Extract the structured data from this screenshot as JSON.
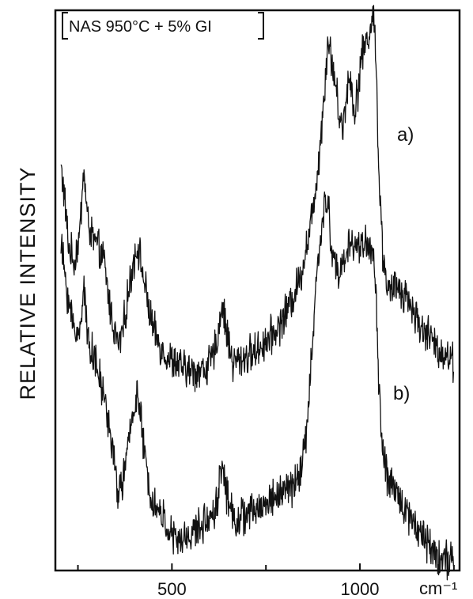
{
  "chart_data": {
    "type": "line",
    "legend_text": "NAS 950°C + 5% GI",
    "ylabel": "RELATIVE INTENSITY",
    "xunit": "cm⁻¹",
    "xlim": [
      190,
      1265
    ],
    "ylim": [
      0,
      100
    ],
    "xticks": [
      {
        "value": 500,
        "label": "500"
      },
      {
        "value": 1000,
        "label": "1000"
      }
    ],
    "minor_ticks": [
      250,
      750,
      1250
    ],
    "grid": false,
    "legend_position": "top-left",
    "series": [
      {
        "name": "a)",
        "color": "#111111",
        "points": [
          [
            205,
            72
          ],
          [
            215,
            66
          ],
          [
            225,
            58
          ],
          [
            240,
            55
          ],
          [
            255,
            60
          ],
          [
            265,
            72
          ],
          [
            275,
            63
          ],
          [
            285,
            60
          ],
          [
            300,
            58
          ],
          [
            320,
            55
          ],
          [
            335,
            47
          ],
          [
            350,
            42
          ],
          [
            358,
            40
          ],
          [
            370,
            43
          ],
          [
            385,
            50
          ],
          [
            400,
            56
          ],
          [
            410,
            58
          ],
          [
            420,
            54
          ],
          [
            435,
            48
          ],
          [
            450,
            43
          ],
          [
            470,
            40
          ],
          [
            490,
            38
          ],
          [
            510,
            37
          ],
          [
            530,
            36
          ],
          [
            560,
            35.5
          ],
          [
            590,
            36
          ],
          [
            610,
            38
          ],
          [
            625,
            43
          ],
          [
            632,
            48
          ],
          [
            640,
            45
          ],
          [
            650,
            41
          ],
          [
            662,
            37
          ],
          [
            690,
            38
          ],
          [
            720,
            39
          ],
          [
            750,
            41
          ],
          [
            780,
            43
          ],
          [
            810,
            47
          ],
          [
            840,
            52
          ],
          [
            870,
            62
          ],
          [
            890,
            73
          ],
          [
            905,
            85
          ],
          [
            915,
            95
          ],
          [
            925,
            91
          ],
          [
            935,
            87
          ],
          [
            945,
            81
          ],
          [
            955,
            79
          ],
          [
            965,
            86
          ],
          [
            975,
            88
          ],
          [
            985,
            82
          ],
          [
            995,
            86
          ],
          [
            1005,
            92
          ],
          [
            1015,
            94
          ],
          [
            1025,
            96
          ],
          [
            1035,
            99
          ],
          [
            1042,
            94
          ],
          [
            1050,
            72
          ],
          [
            1060,
            57
          ],
          [
            1070,
            52
          ],
          [
            1080,
            49
          ],
          [
            1095,
            51
          ],
          [
            1110,
            50
          ],
          [
            1125,
            49
          ],
          [
            1145,
            46
          ],
          [
            1165,
            43
          ],
          [
            1185,
            42
          ],
          [
            1200,
            40
          ],
          [
            1220,
            39
          ],
          [
            1240,
            38
          ],
          [
            1250,
            37
          ]
        ]
      },
      {
        "name": "b)",
        "color": "#111111",
        "points": [
          [
            205,
            58
          ],
          [
            215,
            53
          ],
          [
            225,
            48
          ],
          [
            240,
            43
          ],
          [
            255,
            42
          ],
          [
            265,
            52
          ],
          [
            275,
            42
          ],
          [
            285,
            40
          ],
          [
            300,
            36
          ],
          [
            320,
            31
          ],
          [
            340,
            23
          ],
          [
            355,
            14
          ],
          [
            365,
            15
          ],
          [
            380,
            20
          ],
          [
            395,
            28
          ],
          [
            408,
            32
          ],
          [
            415,
            28
          ],
          [
            430,
            19
          ],
          [
            445,
            13
          ],
          [
            460,
            11
          ],
          [
            480,
            9
          ],
          [
            500,
            6
          ],
          [
            520,
            5
          ],
          [
            550,
            6.5
          ],
          [
            580,
            8
          ],
          [
            605,
            10
          ],
          [
            620,
            12
          ],
          [
            630,
            18
          ],
          [
            635,
            19
          ],
          [
            645,
            14
          ],
          [
            655,
            11
          ],
          [
            670,
            9
          ],
          [
            700,
            10
          ],
          [
            730,
            11
          ],
          [
            760,
            12.5
          ],
          [
            790,
            14
          ],
          [
            820,
            15
          ],
          [
            845,
            18
          ],
          [
            860,
            26
          ],
          [
            875,
            42
          ],
          [
            890,
            57
          ],
          [
            905,
            64
          ],
          [
            915,
            66
          ],
          [
            925,
            57
          ],
          [
            935,
            55
          ],
          [
            945,
            52
          ],
          [
            960,
            56
          ],
          [
            975,
            59
          ],
          [
            990,
            57
          ],
          [
            1005,
            59
          ],
          [
            1020,
            58
          ],
          [
            1035,
            56
          ],
          [
            1042,
            52
          ],
          [
            1050,
            33
          ],
          [
            1060,
            22
          ],
          [
            1070,
            17
          ],
          [
            1080,
            15
          ],
          [
            1095,
            14
          ],
          [
            1110,
            12.5
          ],
          [
            1130,
            10
          ],
          [
            1150,
            8
          ],
          [
            1170,
            6
          ],
          [
            1190,
            4
          ],
          [
            1210,
            2.5
          ],
          [
            1230,
            2
          ],
          [
            1250,
            2
          ]
        ]
      }
    ]
  }
}
